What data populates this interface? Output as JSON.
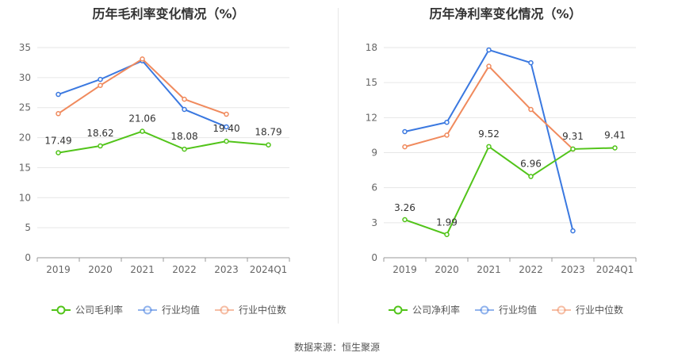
{
  "chart_data": [
    {
      "type": "line",
      "title": "历年毛利率变化情况（%）",
      "categories": [
        "2019",
        "2020",
        "2021",
        "2022",
        "2023",
        "2024Q1"
      ],
      "ylim": [
        0,
        35
      ],
      "yticks": [
        0,
        5,
        10,
        15,
        20,
        25,
        30,
        35
      ],
      "grid": true,
      "legend_position": "bottom",
      "series": [
        {
          "name": "公司毛利率",
          "color": "#52c41a",
          "values": [
            17.49,
            18.62,
            21.06,
            18.08,
            19.4,
            18.79
          ],
          "labels": [
            "17.49",
            "18.62",
            "21.06",
            "18.08",
            "19.40",
            "18.79"
          ]
        },
        {
          "name": "行业均值",
          "color": "#3a78e0",
          "values": [
            27.2,
            29.7,
            32.8,
            24.7,
            21.8,
            null
          ]
        },
        {
          "name": "行业中位数",
          "color": "#f08a5d",
          "values": [
            24.0,
            28.7,
            33.1,
            26.4,
            23.9,
            null
          ]
        }
      ]
    },
    {
      "type": "line",
      "title": "历年净利率变化情况（%）",
      "categories": [
        "2019",
        "2020",
        "2021",
        "2022",
        "2023",
        "2024Q1"
      ],
      "ylim": [
        0,
        18
      ],
      "yticks": [
        0,
        3,
        6,
        9,
        12,
        15,
        18
      ],
      "grid": true,
      "legend_position": "bottom",
      "series": [
        {
          "name": "公司净利率",
          "color": "#52c41a",
          "values": [
            3.26,
            1.99,
            9.52,
            6.96,
            9.31,
            9.41
          ],
          "labels": [
            "3.26",
            "1.99",
            "9.52",
            "6.96",
            "9.31",
            "9.41"
          ]
        },
        {
          "name": "行业均值",
          "color": "#3a78e0",
          "values": [
            10.8,
            11.6,
            17.8,
            16.7,
            2.3,
            null
          ]
        },
        {
          "name": "行业中位数",
          "color": "#f08a5d",
          "values": [
            9.5,
            10.5,
            16.4,
            12.7,
            9.3,
            null
          ]
        }
      ]
    }
  ],
  "footer": {
    "source": "数据来源：恒生聚源"
  }
}
